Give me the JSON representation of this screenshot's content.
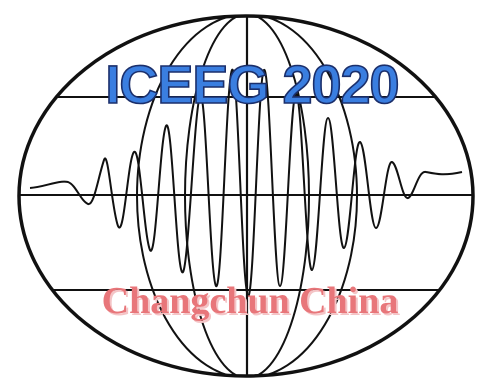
{
  "logo": {
    "title": "ICEEG 2020",
    "subtitle": "Changchun China",
    "colors": {
      "background": "#ffffff",
      "lines": "#111111",
      "title_fill": "#3a7ee0",
      "title_stroke": "#1b2f6b",
      "subtitle_fill": "#e8767a",
      "subtitle_shadow": "#f4c4c6"
    }
  }
}
